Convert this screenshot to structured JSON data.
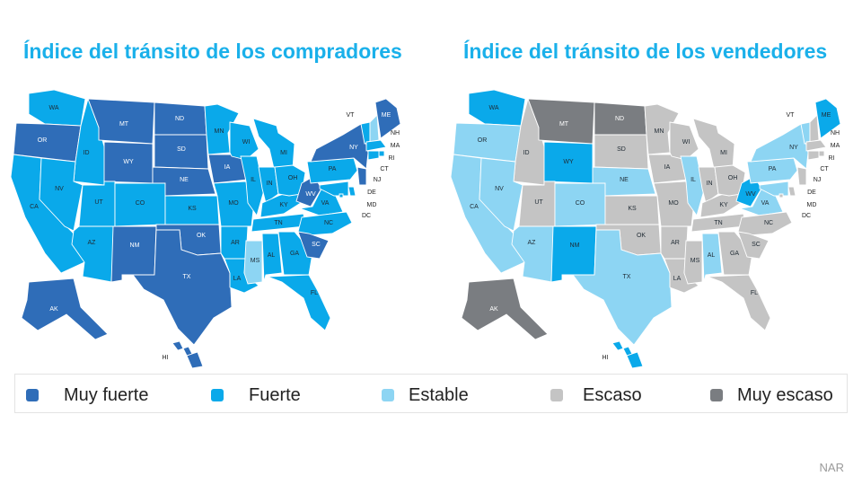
{
  "titles": {
    "buyers": "Índice del tránsito de los compradores",
    "sellers": "Índice del tránsito de los vendedores"
  },
  "legend": [
    {
      "key": "muy_fuerte",
      "label": "Muy fuerte",
      "color": "#2f6db8"
    },
    {
      "key": "fuerte",
      "label": "Fuerte",
      "color": "#0aa9ea"
    },
    {
      "key": "estable",
      "label": "Estable",
      "color": "#8dd5f3"
    },
    {
      "key": "escaso",
      "label": "Escaso",
      "color": "#c4c4c4"
    },
    {
      "key": "muy_escaso",
      "label": "Muy escaso",
      "color": "#7a7d81"
    }
  ],
  "source": "NAR",
  "states": {
    "WA": {
      "buyers": "fuerte",
      "sellers": "fuerte"
    },
    "OR": {
      "buyers": "muy_fuerte",
      "sellers": "estable"
    },
    "CA": {
      "buyers": "fuerte",
      "sellers": "estable"
    },
    "ID": {
      "buyers": "fuerte",
      "sellers": "escaso"
    },
    "NV": {
      "buyers": "fuerte",
      "sellers": "estable"
    },
    "MT": {
      "buyers": "muy_fuerte",
      "sellers": "muy_escaso"
    },
    "WY": {
      "buyers": "muy_fuerte",
      "sellers": "fuerte"
    },
    "UT": {
      "buyers": "fuerte",
      "sellers": "escaso"
    },
    "AZ": {
      "buyers": "fuerte",
      "sellers": "estable"
    },
    "CO": {
      "buyers": "fuerte",
      "sellers": "estable"
    },
    "NM": {
      "buyers": "muy_fuerte",
      "sellers": "fuerte"
    },
    "ND": {
      "buyers": "muy_fuerte",
      "sellers": "muy_escaso"
    },
    "SD": {
      "buyers": "muy_fuerte",
      "sellers": "escaso"
    },
    "NE": {
      "buyers": "muy_fuerte",
      "sellers": "estable"
    },
    "KS": {
      "buyers": "fuerte",
      "sellers": "escaso"
    },
    "OK": {
      "buyers": "muy_fuerte",
      "sellers": "escaso"
    },
    "TX": {
      "buyers": "muy_fuerte",
      "sellers": "estable"
    },
    "MN": {
      "buyers": "fuerte",
      "sellers": "escaso"
    },
    "IA": {
      "buyers": "muy_fuerte",
      "sellers": "escaso"
    },
    "MO": {
      "buyers": "fuerte",
      "sellers": "escaso"
    },
    "AR": {
      "buyers": "fuerte",
      "sellers": "escaso"
    },
    "LA": {
      "buyers": "fuerte",
      "sellers": "escaso"
    },
    "WI": {
      "buyers": "fuerte",
      "sellers": "escaso"
    },
    "IL": {
      "buyers": "fuerte",
      "sellers": "estable"
    },
    "MS": {
      "buyers": "estable",
      "sellers": "escaso"
    },
    "MI": {
      "buyers": "fuerte",
      "sellers": "escaso"
    },
    "IN": {
      "buyers": "fuerte",
      "sellers": "escaso"
    },
    "KY": {
      "buyers": "fuerte",
      "sellers": "escaso"
    },
    "TN": {
      "buyers": "fuerte",
      "sellers": "escaso"
    },
    "AL": {
      "buyers": "fuerte",
      "sellers": "estable"
    },
    "GA": {
      "buyers": "fuerte",
      "sellers": "escaso"
    },
    "FL": {
      "buyers": "fuerte",
      "sellers": "escaso"
    },
    "OH": {
      "buyers": "fuerte",
      "sellers": "escaso"
    },
    "WV": {
      "buyers": "muy_fuerte",
      "sellers": "fuerte"
    },
    "VA": {
      "buyers": "fuerte",
      "sellers": "estable"
    },
    "NC": {
      "buyers": "fuerte",
      "sellers": "escaso"
    },
    "SC": {
      "buyers": "muy_fuerte",
      "sellers": "escaso"
    },
    "PA": {
      "buyers": "fuerte",
      "sellers": "estable"
    },
    "NY": {
      "buyers": "muy_fuerte",
      "sellers": "estable"
    },
    "VT": {
      "buyers": "fuerte",
      "sellers": "estable"
    },
    "NH": {
      "buyers": "estable",
      "sellers": "escaso"
    },
    "ME": {
      "buyers": "muy_fuerte",
      "sellers": "fuerte"
    },
    "MA": {
      "buyers": "fuerte",
      "sellers": "escaso"
    },
    "RI": {
      "buyers": "fuerte",
      "sellers": "escaso"
    },
    "CT": {
      "buyers": "fuerte",
      "sellers": "escaso"
    },
    "NJ": {
      "buyers": "muy_fuerte",
      "sellers": "escaso"
    },
    "DE": {
      "buyers": "fuerte",
      "sellers": "escaso"
    },
    "MD": {
      "buyers": "fuerte",
      "sellers": "estable"
    },
    "DC": {
      "buyers": "fuerte",
      "sellers": "escaso"
    },
    "AK": {
      "buyers": "muy_fuerte",
      "sellers": "muy_escaso"
    },
    "HI": {
      "buyers": "muy_fuerte",
      "sellers": "fuerte"
    }
  }
}
